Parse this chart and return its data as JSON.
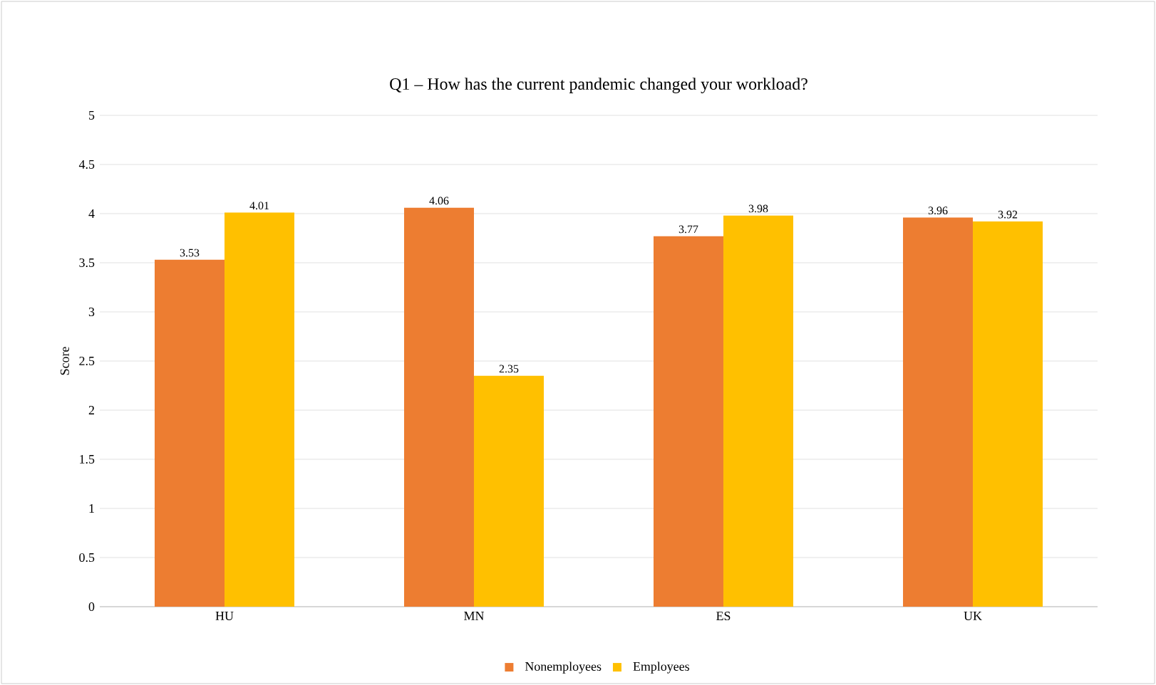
{
  "chart_data": {
    "type": "bar",
    "title": "Q1 – How has the current pandemic changed your workload?",
    "ylabel": "Score",
    "categories": [
      "HU",
      "MN",
      "ES",
      "UK"
    ],
    "series": [
      {
        "name": "Nonemployees",
        "color": "#ed7d31",
        "values": [
          3.53,
          4.06,
          3.77,
          3.96
        ]
      },
      {
        "name": "Employees",
        "color": "#ffc000",
        "values": [
          4.01,
          2.35,
          3.98,
          3.92
        ]
      }
    ],
    "ylim": [
      0,
      5
    ],
    "yticks": [
      0,
      0.5,
      1,
      1.5,
      2,
      2.5,
      3,
      3.5,
      4,
      4.5,
      5
    ],
    "grid": "y",
    "legend": "bottom",
    "data_labels": true
  }
}
